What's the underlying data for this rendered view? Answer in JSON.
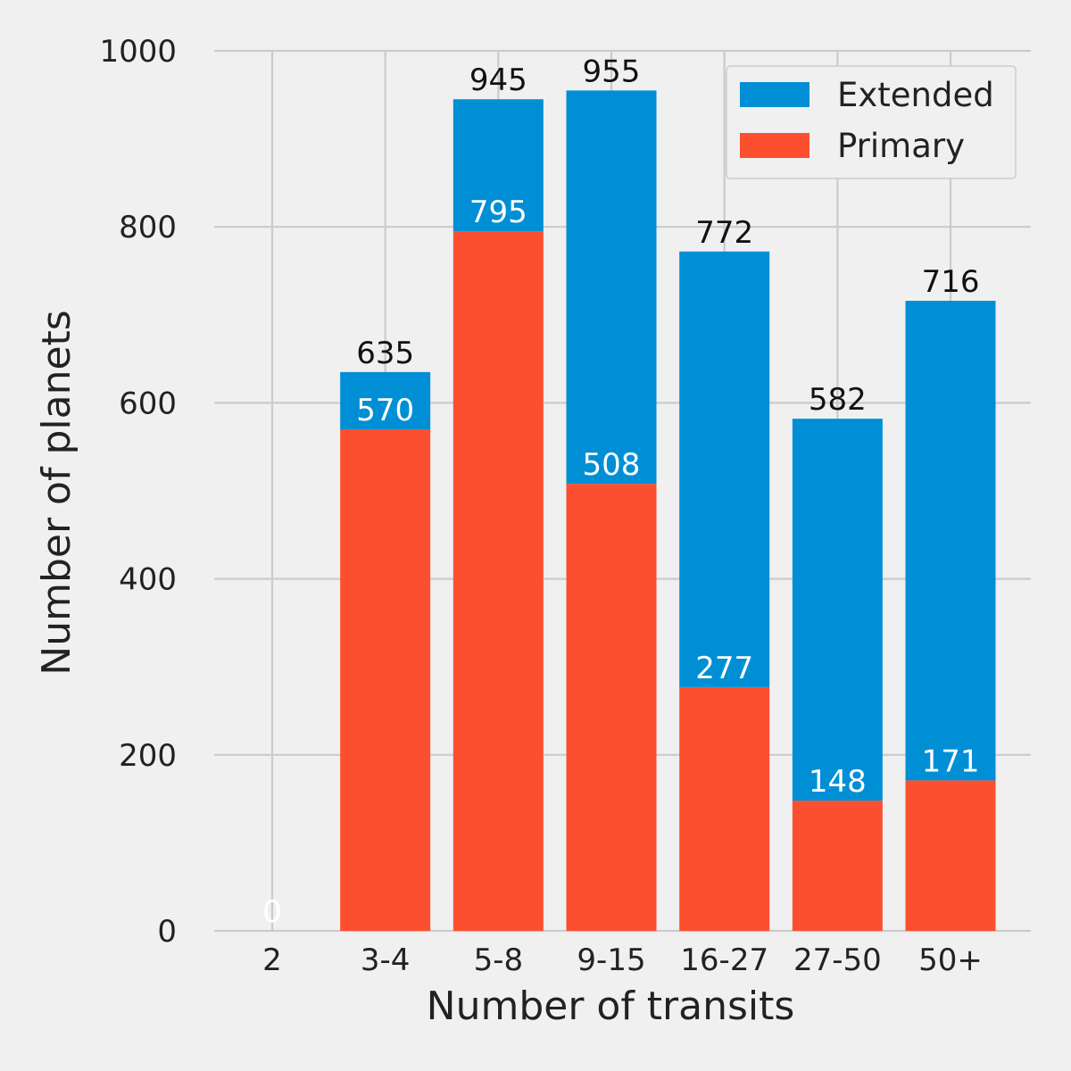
{
  "chart_data": {
    "type": "bar",
    "stacked": true,
    "categories": [
      "2",
      "3-4",
      "5-8",
      "9-15",
      "16-27",
      "27-50",
      "50+"
    ],
    "series": [
      {
        "name": "Primary",
        "color": "#fc4f30",
        "values": [
          0,
          570,
          795,
          508,
          277,
          148,
          171
        ]
      },
      {
        "name": "Extended",
        "color": "#008fd5",
        "values": [
          0,
          65,
          150,
          447,
          495,
          434,
          545
        ]
      }
    ],
    "totals": [
      0,
      635,
      945,
      955,
      772,
      582,
      716
    ],
    "primary_labels": [
      "0",
      "570",
      "795",
      "508",
      "277",
      "148",
      "171"
    ],
    "total_labels": [
      "0",
      "635",
      "945",
      "955",
      "772",
      "582",
      "716"
    ],
    "xlabel": "Number of transits",
    "ylabel": "Number of planets",
    "ylim": [
      0,
      1000
    ],
    "yticks": [
      "0",
      "200",
      "400",
      "600",
      "800",
      "1000"
    ],
    "grid": true,
    "legend": {
      "position": "top-right",
      "entries": [
        "Extended",
        "Primary"
      ]
    },
    "background": "#f0f0f0",
    "grid_color": "#cbcbcb"
  }
}
